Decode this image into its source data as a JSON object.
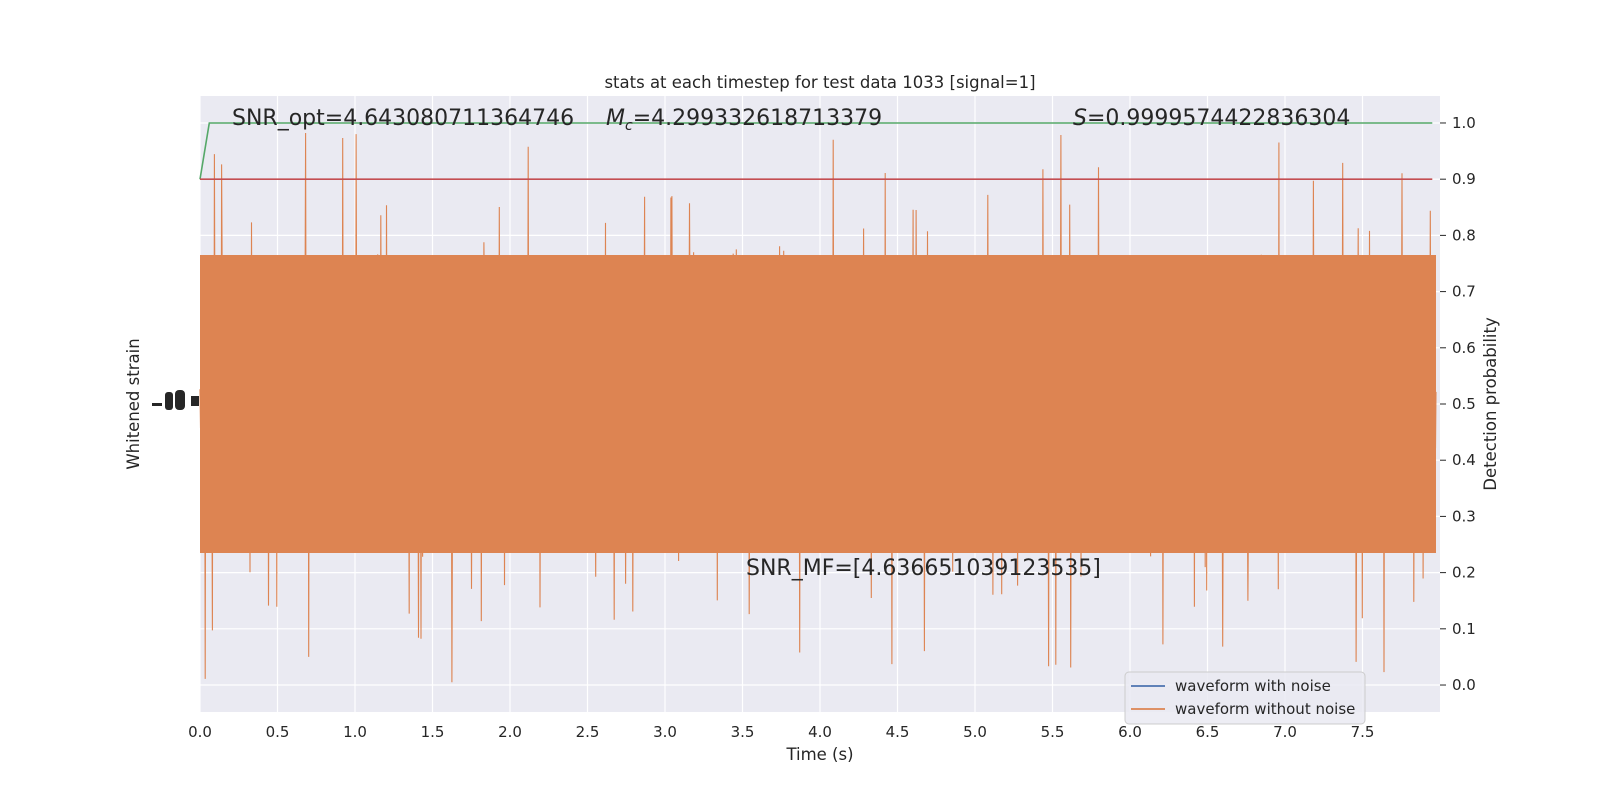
{
  "chart_data": {
    "type": "line",
    "title": "stats at each timestep for test data 1033 [signal=1]",
    "xlabel": "Time (s)",
    "ylabel_left": "Whitened strain",
    "ylabel_right": "Detection probability",
    "xlim": [
      0.0,
      8.0
    ],
    "ylim_right": [
      -0.048,
      1.048
    ],
    "xticks": [
      0.0,
      0.5,
      1.0,
      1.5,
      2.0,
      2.5,
      3.0,
      3.5,
      4.0,
      4.5,
      5.0,
      5.5,
      6.0,
      6.5,
      7.0,
      7.5
    ],
    "xtick_labels": [
      "0.0",
      "0.5",
      "1.0",
      "1.5",
      "2.0",
      "2.5",
      "3.0",
      "3.5",
      "4.0",
      "4.5",
      "5.0",
      "5.5",
      "6.0",
      "6.5",
      "7.0",
      "7.5"
    ],
    "yticks_right": [
      0.0,
      0.1,
      0.2,
      0.3,
      0.4,
      0.5,
      0.6,
      0.7,
      0.8,
      0.9,
      1.0
    ],
    "ytick_labels_right": [
      "0.0",
      "0.1",
      "0.2",
      "0.3",
      "0.4",
      "0.5",
      "0.6",
      "0.7",
      "0.8",
      "0.9",
      "1.0"
    ],
    "grid": true,
    "legend_position": "bottom-right",
    "annotations": {
      "snr_opt": "SNR_opt=4.643080711364746",
      "mc_symbol": "M",
      "mc_subscript": "c",
      "mc_value": "=4.299332618713379",
      "s_symbol": "S",
      "s_value": "=0.9999574422836304",
      "snr_mf": "SNR_MF=[4.636651039123535]"
    },
    "series": [
      {
        "name": "waveform with noise",
        "color": "#4c72b0",
        "axis": "left",
        "style": "dense-noise"
      },
      {
        "name": "waveform without noise",
        "color": "#dd8452",
        "axis": "left",
        "style": "dense-noise"
      },
      {
        "axis": "right",
        "color": "#55a868",
        "x": [
          0.0,
          0.06,
          7.95
        ],
        "values": [
          0.9,
          1.0,
          1.0
        ]
      },
      {
        "axis": "right",
        "color": "#c44e52",
        "x": [
          0.0,
          7.95
        ],
        "values": [
          0.9,
          0.9
        ]
      }
    ]
  }
}
